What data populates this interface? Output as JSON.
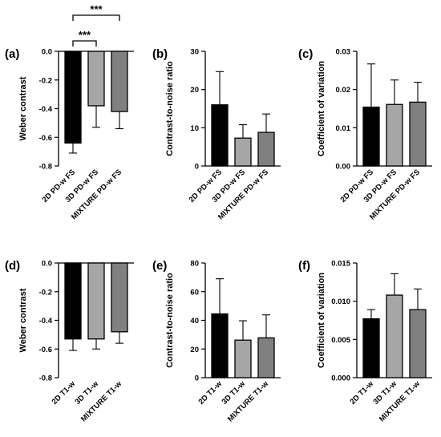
{
  "colors": {
    "black": "#000000",
    "light_gray": "#A6A6A6",
    "dark_gray": "#808080"
  },
  "chart_data": [
    {
      "type": "bar",
      "panel": "(a)",
      "ylabel": "Weber contrast",
      "categories": [
        "2D PD-w FS",
        "3D PD-w FS",
        "MIXTURE PD-w FS"
      ],
      "values": [
        -0.64,
        -0.38,
        -0.42
      ],
      "errors": [
        0.07,
        0.15,
        0.12
      ],
      "ylim": [
        -0.8,
        0.0
      ],
      "yticks": [
        "0.0",
        "-0.2",
        "-0.4",
        "-0.6",
        "-0.8"
      ],
      "significance": [
        {
          "from": 0,
          "to": 1,
          "label": "***"
        },
        {
          "from": 0,
          "to": 2,
          "label": "***"
        }
      ]
    },
    {
      "type": "bar",
      "panel": "(b)",
      "ylabel": "Contrast-to-noise ratio",
      "categories": [
        "2D PD-w FS",
        "3D PD-w FS",
        "MIXTURE PD-w FS"
      ],
      "values": [
        16.0,
        7.3,
        8.8
      ],
      "errors": [
        8.7,
        3.5,
        4.8
      ],
      "ylim": [
        0,
        30
      ],
      "yticks": [
        "0",
        "10",
        "20",
        "30"
      ]
    },
    {
      "type": "bar",
      "panel": "(c)",
      "ylabel": "Coefficient of variation",
      "categories": [
        "2D PD-w FS",
        "3D PD-w FS",
        "MIXTURE PD-w FS"
      ],
      "values": [
        0.0154,
        0.0161,
        0.0167
      ],
      "errors": [
        0.0113,
        0.0064,
        0.0052
      ],
      "ylim": [
        0,
        0.03
      ],
      "yticks": [
        "0.00",
        "0.01",
        "0.02",
        "0.03"
      ]
    },
    {
      "type": "bar",
      "panel": "(d)",
      "ylabel": "Weber contrast",
      "categories": [
        "2D T1-w",
        "3D T1-w",
        "MIXTURE T1-w"
      ],
      "values": [
        -0.53,
        -0.53,
        -0.48
      ],
      "errors": [
        0.08,
        0.07,
        0.08
      ],
      "ylim": [
        -0.8,
        0.0
      ],
      "yticks": [
        "0.0",
        "-0.2",
        "-0.4",
        "-0.6",
        "-0.8"
      ]
    },
    {
      "type": "bar",
      "panel": "(e)",
      "ylabel": "Contrast-to-noise ratio",
      "categories": [
        "2D T1-w",
        "3D T1-w",
        "MIXTURE T1-w"
      ],
      "values": [
        44.5,
        26.2,
        27.8
      ],
      "errors": [
        24.5,
        13.5,
        16.0
      ],
      "ylim": [
        0,
        80
      ],
      "yticks": [
        "0",
        "20",
        "40",
        "60",
        "80"
      ]
    },
    {
      "type": "bar",
      "panel": "(f)",
      "ylabel": "Coefficient of variation",
      "categories": [
        "2D T1-w",
        "3D T1-w",
        "MIXTURE T1-w"
      ],
      "values": [
        0.0077,
        0.0108,
        0.0089
      ],
      "errors": [
        0.0012,
        0.0028,
        0.0027
      ],
      "ylim": [
        0,
        0.015
      ],
      "yticks": [
        "0.000",
        "0.005",
        "0.010",
        "0.015"
      ]
    }
  ]
}
